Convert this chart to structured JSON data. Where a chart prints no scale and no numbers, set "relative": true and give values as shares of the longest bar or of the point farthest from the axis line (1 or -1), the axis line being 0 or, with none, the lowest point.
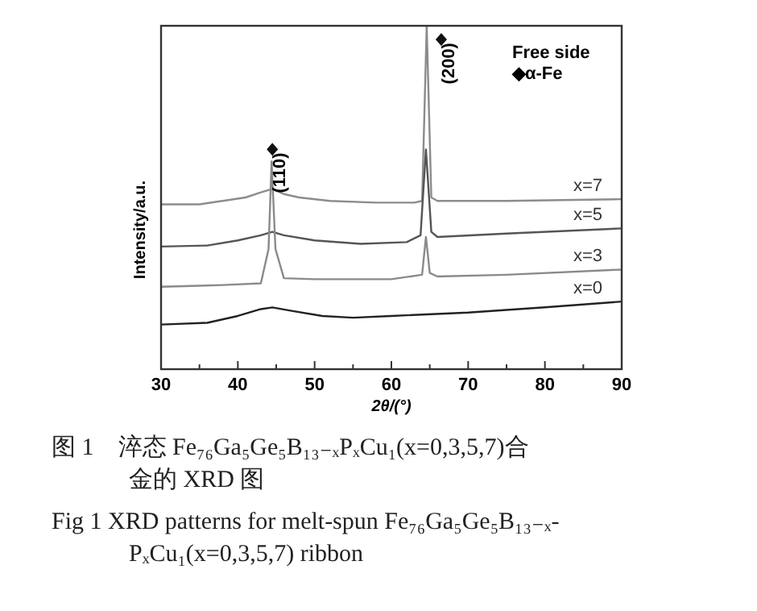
{
  "chart_data": {
    "type": "line",
    "relative": true,
    "xlabel": "2θ/(°)",
    "ylabel": "Intensity/a.u.",
    "xlim": [
      30,
      90
    ],
    "xticks": [
      30,
      {
        "value": 35,
        "label": null
      },
      40,
      {
        "value": 45,
        "label": null
      },
      50,
      {
        "value": 55,
        "label": null
      },
      60,
      {
        "value": 65,
        "label": null
      },
      70,
      {
        "value": 75,
        "label": null
      },
      80,
      {
        "value": 85,
        "label": null
      },
      90
    ],
    "grid": false,
    "series": [
      {
        "name": "x=7",
        "color": "#8c8c8c",
        "x": [
          30,
          35,
          38,
          41,
          43,
          44.5,
          46,
          48,
          52,
          58,
          63,
          64,
          64.6,
          65.2,
          66,
          75,
          90
        ],
        "values": [
          0.48,
          0.48,
          0.49,
          0.5,
          0.515,
          0.525,
          0.51,
          0.5,
          0.49,
          0.485,
          0.485,
          0.49,
          1.0,
          0.5,
          0.49,
          0.49,
          0.495
        ]
      },
      {
        "name": "x=5",
        "color": "#555555",
        "x": [
          30,
          36,
          40,
          43,
          44.5,
          46,
          50,
          56,
          62,
          63.8,
          64.5,
          65.2,
          66,
          75,
          90
        ],
        "values": [
          0.357,
          0.36,
          0.375,
          0.39,
          0.4,
          0.39,
          0.375,
          0.365,
          0.37,
          0.39,
          0.64,
          0.4,
          0.385,
          0.395,
          0.41
        ]
      },
      {
        "name": "x=3",
        "color": "#8a8a8a",
        "x": [
          30,
          38,
          43,
          44,
          44.4,
          44.9,
          46,
          50,
          60,
          64,
          64.5,
          65,
          66,
          75,
          90
        ],
        "values": [
          0.24,
          0.245,
          0.25,
          0.35,
          0.605,
          0.35,
          0.265,
          0.262,
          0.262,
          0.275,
          0.385,
          0.28,
          0.27,
          0.275,
          0.29
        ]
      },
      {
        "name": "x=0",
        "color": "#222222",
        "x": [
          30,
          36,
          40,
          43,
          44.5,
          47,
          51,
          55,
          60,
          70,
          80,
          90
        ],
        "values": [
          0.13,
          0.135,
          0.155,
          0.175,
          0.18,
          0.17,
          0.155,
          0.15,
          0.155,
          0.165,
          0.18,
          0.197
        ]
      }
    ],
    "annotations": [
      {
        "text": "(110)",
        "x": 44.5,
        "y": 0.64
      },
      {
        "text": "(200)",
        "x": 66.5,
        "y": 0.96
      },
      "Free side",
      "◆α-Fe",
      "图 1　淬态 Fe₇₆Ga₅Ge₅B₁₃₋ₓPₓCu₁(x=0,3,5,7)合",
      "金的 XRD 图",
      "Fig 1 XRD patterns for melt-spun Fe₇₆Ga₅Ge₅B₁₃₋ₓ-",
      "PₓCu₁(x=0,3,5,7) ribbon"
    ]
  }
}
